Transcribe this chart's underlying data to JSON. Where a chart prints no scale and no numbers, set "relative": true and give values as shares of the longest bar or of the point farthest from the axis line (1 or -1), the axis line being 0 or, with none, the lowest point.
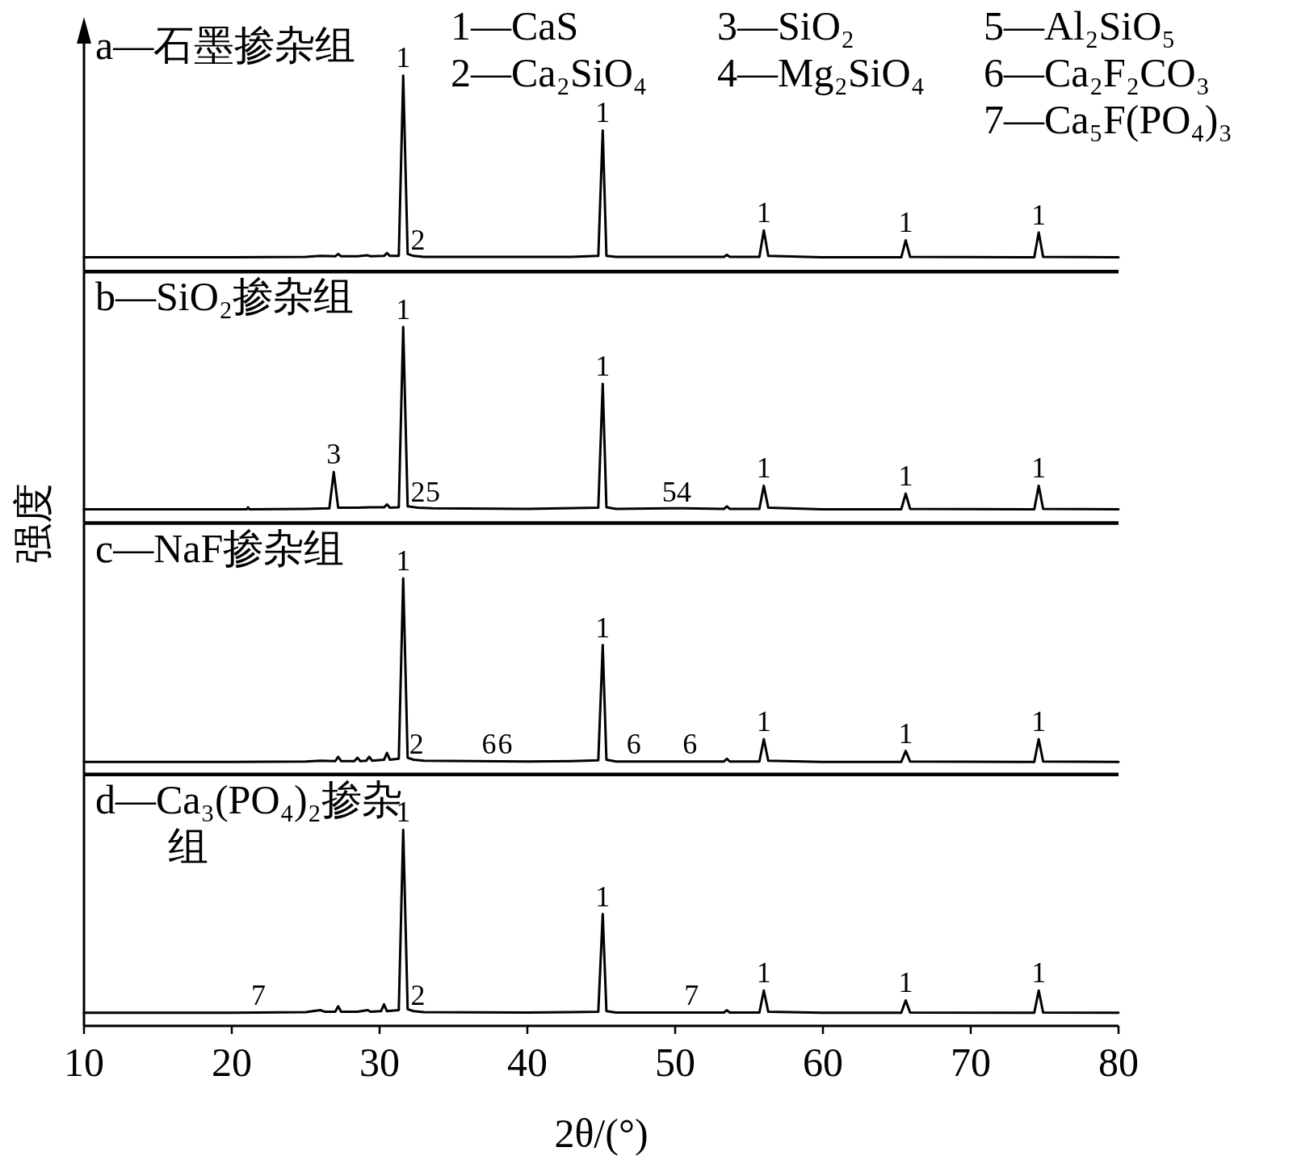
{
  "chart_data": [
    {
      "type": "line",
      "title": "a—石墨掺杂组",
      "relative": true,
      "xlim": [
        10,
        80
      ],
      "tick_labels": false,
      "series": [
        {
          "color": "#000000",
          "x": [
            10,
            20,
            25,
            26,
            27,
            27.2,
            27.4,
            28.5,
            29.2,
            29.4,
            30.3,
            30.5,
            30.7,
            31.3,
            31.6,
            31.9,
            32.3,
            33,
            40,
            43,
            44.8,
            45.1,
            45.35,
            46,
            53.3,
            53.5,
            53.7,
            55.7,
            56.0,
            56.3,
            60,
            65.3,
            65.6,
            65.9,
            74.3,
            74.6,
            74.9,
            80
          ],
          "values": [
            0.073,
            0.073,
            0.075,
            0.08,
            0.078,
            0.09,
            0.078,
            0.078,
            0.083,
            0.078,
            0.08,
            0.095,
            0.08,
            0.08,
            1.0,
            0.09,
            0.08,
            0.075,
            0.075,
            0.075,
            0.08,
            0.72,
            0.08,
            0.075,
            0.075,
            0.085,
            0.075,
            0.075,
            0.21,
            0.08,
            0.073,
            0.073,
            0.16,
            0.075,
            0.073,
            0.2,
            0.075,
            0.073
          ]
        }
      ],
      "annotations": [
        "1—CaS",
        "2—Ca₂SiO₄",
        "3—SiO₂",
        "4—Mg₂SiO₄",
        "5—Al₂SiO₅",
        "6—Ca₂F₂CO₃",
        "7—Ca₅F(PO₄)₃",
        {
          "text": "1",
          "x": 31.6,
          "y": 1.0
        },
        {
          "text": "2",
          "x": 32.6,
          "y": 0.073
        },
        {
          "text": "1",
          "x": 45.1,
          "y": 0.72
        },
        {
          "text": "1",
          "x": 56,
          "y": 0.21
        },
        {
          "text": "1",
          "x": 65.6,
          "y": 0.16
        },
        {
          "text": "1",
          "x": 74.6,
          "y": 0.2
        }
      ]
    },
    {
      "type": "line",
      "title": "b—SiO₂掺杂组",
      "relative": true,
      "xlim": [
        10,
        80
      ],
      "tick_labels": false,
      "series": [
        {
          "color": "#000000",
          "x": [
            10,
            21,
            21.1,
            21.2,
            25,
            26.6,
            26.9,
            27.2,
            28.5,
            29.4,
            30.3,
            30.5,
            30.7,
            31.3,
            31.6,
            31.9,
            32.6,
            33.6,
            40,
            44.8,
            45.1,
            45.35,
            46,
            49.6,
            50.6,
            53.3,
            53.5,
            53.7,
            55.7,
            56.0,
            56.3,
            60,
            65.3,
            65.6,
            65.9,
            74.3,
            74.6,
            74.9,
            80
          ],
          "values": [
            0.07,
            0.07,
            0.08,
            0.07,
            0.072,
            0.075,
            0.26,
            0.078,
            0.078,
            0.08,
            0.08,
            0.095,
            0.078,
            0.08,
            1.0,
            0.085,
            0.078,
            0.075,
            0.072,
            0.078,
            0.71,
            0.08,
            0.072,
            0.075,
            0.075,
            0.072,
            0.085,
            0.072,
            0.072,
            0.19,
            0.078,
            0.07,
            0.07,
            0.15,
            0.072,
            0.07,
            0.19,
            0.072,
            0.07
          ]
        }
      ],
      "annotations": [
        {
          "text": "3",
          "x": 26.9,
          "y": 0.26
        },
        {
          "text": "1",
          "x": 31.6,
          "y": 1.0
        },
        {
          "text": "2",
          "x": 32.6,
          "y": 0.07
        },
        {
          "text": "5",
          "x": 33.6,
          "y": 0.07
        },
        {
          "text": "1",
          "x": 45.1,
          "y": 0.71
        },
        {
          "text": "5",
          "x": 49.6,
          "y": 0.07
        },
        {
          "text": "4",
          "x": 50.6,
          "y": 0.07
        },
        {
          "text": "1",
          "x": 56,
          "y": 0.19
        },
        {
          "text": "1",
          "x": 65.6,
          "y": 0.15
        },
        {
          "text": "1",
          "x": 74.6,
          "y": 0.19
        }
      ]
    },
    {
      "type": "line",
      "title": "c—NaF掺杂组",
      "ylabel": "强度",
      "relative": true,
      "xlim": [
        10,
        80
      ],
      "tick_labels": false,
      "series": [
        {
          "color": "#000000",
          "x": [
            10,
            20,
            25,
            26,
            27,
            27.2,
            27.4,
            28.3,
            28.5,
            28.7,
            29.1,
            29.3,
            29.5,
            30.3,
            30.5,
            30.7,
            31.3,
            31.6,
            31.9,
            32.3,
            33,
            40,
            43,
            44.8,
            45.1,
            45.35,
            46,
            53.3,
            53.5,
            53.7,
            55.7,
            56.0,
            56.3,
            60,
            65.3,
            65.6,
            65.9,
            74.3,
            74.6,
            74.9,
            80
          ],
          "values": [
            0.064,
            0.064,
            0.066,
            0.07,
            0.068,
            0.09,
            0.068,
            0.068,
            0.085,
            0.068,
            0.07,
            0.09,
            0.07,
            0.075,
            0.11,
            0.075,
            0.08,
            1.0,
            0.085,
            0.075,
            0.07,
            0.066,
            0.068,
            0.072,
            0.66,
            0.075,
            0.066,
            0.066,
            0.08,
            0.066,
            0.066,
            0.18,
            0.07,
            0.064,
            0.064,
            0.12,
            0.066,
            0.064,
            0.18,
            0.066,
            0.064
          ]
        }
      ],
      "annotations": [
        {
          "text": "1",
          "x": 31.6,
          "y": 1.0
        },
        {
          "text": "2",
          "x": 32.5,
          "y": 0.064
        },
        {
          "text": "6",
          "x": 37.4,
          "y": 0.064
        },
        {
          "text": "6",
          "x": 38.5,
          "y": 0.064
        },
        {
          "text": "1",
          "x": 45.1,
          "y": 0.66
        },
        {
          "text": "6",
          "x": 47.2,
          "y": 0.064
        },
        {
          "text": "6",
          "x": 51.0,
          "y": 0.064
        },
        {
          "text": "1",
          "x": 56,
          "y": 0.18
        },
        {
          "text": "1",
          "x": 65.6,
          "y": 0.12
        },
        {
          "text": "1",
          "x": 74.6,
          "y": 0.18
        }
      ]
    },
    {
      "type": "line",
      "title": "d—Ca₃(PO₄)₂掺杂组",
      "xlabel": "2θ/(°)",
      "relative": true,
      "xlim": [
        10,
        80
      ],
      "xticks": [
        10,
        20,
        30,
        40,
        50,
        60,
        70,
        80
      ],
      "series": [
        {
          "color": "#000000",
          "x": [
            10,
            20,
            25,
            26,
            26.3,
            27,
            27.2,
            27.4,
            28.5,
            29.2,
            29.4,
            30.1,
            30.3,
            30.5,
            31.3,
            31.6,
            31.9,
            32.3,
            33,
            40,
            43,
            44.8,
            45.1,
            45.35,
            46,
            53.3,
            53.5,
            53.7,
            55.7,
            56.0,
            56.3,
            60,
            65.3,
            65.6,
            65.9,
            74.3,
            74.6,
            74.9,
            80
          ],
          "values": [
            0.067,
            0.067,
            0.07,
            0.08,
            0.072,
            0.072,
            0.1,
            0.072,
            0.072,
            0.08,
            0.072,
            0.075,
            0.11,
            0.075,
            0.08,
            1.0,
            0.085,
            0.075,
            0.07,
            0.068,
            0.07,
            0.072,
            0.57,
            0.075,
            0.068,
            0.068,
            0.08,
            0.068,
            0.068,
            0.18,
            0.072,
            0.067,
            0.067,
            0.13,
            0.068,
            0.067,
            0.18,
            0.068,
            0.067
          ]
        }
      ],
      "annotations": [
        {
          "text": "7",
          "x": 21.8,
          "y": 0.067
        },
        {
          "text": "1",
          "x": 31.6,
          "y": 1.0
        },
        {
          "text": "2",
          "x": 32.6,
          "y": 0.067
        },
        {
          "text": "1",
          "x": 45.1,
          "y": 0.57
        },
        {
          "text": "7",
          "x": 51.1,
          "y": 0.067
        },
        {
          "text": "1",
          "x": 56,
          "y": 0.18
        },
        {
          "text": "1",
          "x": 65.6,
          "y": 0.13
        },
        {
          "text": "1",
          "x": 74.6,
          "y": 0.18
        }
      ]
    }
  ]
}
